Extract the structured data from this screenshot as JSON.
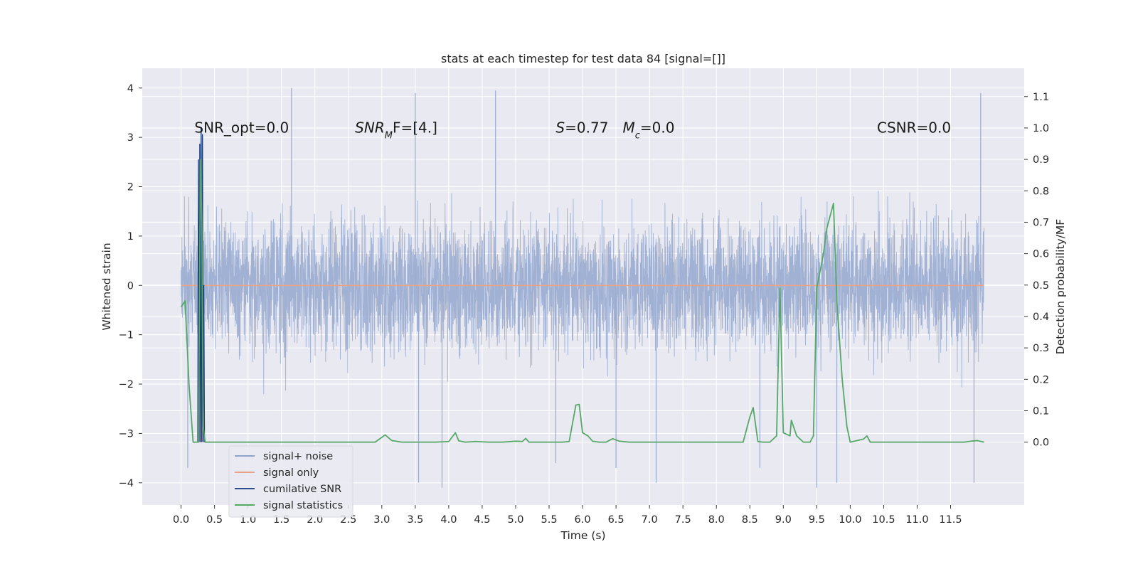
{
  "chart_data": {
    "type": "line",
    "title": "stats at each timestep for test data 84 [signal=[]]",
    "xlabel": "Time (s)",
    "ylabel": "Whitened strain",
    "ylabel_right": "Detection probability/MF",
    "xlim": [
      -0.58,
      12.6
    ],
    "ylim": [
      -4.45,
      4.4
    ],
    "ylim_right": [
      -0.2,
      1.19
    ],
    "x_ticks": [
      "0.0",
      "0.5",
      "1.0",
      "1.5",
      "2.0",
      "2.5",
      "3.0",
      "3.5",
      "4.0",
      "4.5",
      "5.0",
      "5.5",
      "6.0",
      "6.5",
      "7.0",
      "7.5",
      "8.0",
      "8.5",
      "9.0",
      "9.5",
      "10.0",
      "10.5",
      "11.0",
      "11.5"
    ],
    "x_tick_values": [
      0,
      0.5,
      1,
      1.5,
      2,
      2.5,
      3,
      3.5,
      4,
      4.5,
      5,
      5.5,
      6,
      6.5,
      7,
      7.5,
      8,
      8.5,
      9,
      9.5,
      10,
      10.5,
      11,
      11.5
    ],
    "y_ticks": [
      "−4",
      "−3",
      "−2",
      "−1",
      "0",
      "1",
      "2",
      "3",
      "4"
    ],
    "y_tick_values": [
      -4,
      -3,
      -2,
      -1,
      0,
      1,
      2,
      3,
      4
    ],
    "y_right_ticks": [
      "0.0",
      "0.1",
      "0.2",
      "0.3",
      "0.4",
      "0.5",
      "0.6",
      "0.7",
      "0.8",
      "0.9",
      "1.0",
      "1.1"
    ],
    "y_right_tick_values": [
      0,
      0.1,
      0.2,
      0.3,
      0.4,
      0.5,
      0.6,
      0.7,
      0.8,
      0.9,
      1.0,
      1.1
    ],
    "annotations": [
      {
        "text": "SNR_opt=0.0",
        "x": 0.2,
        "y": 3.2
      },
      {
        "parts": [
          {
            "t": "SNR",
            "i": true
          },
          {
            "t": "M",
            "i": true,
            "sub": true
          },
          {
            "t": "F=[4.]",
            "i": false
          }
        ],
        "x": 2.6,
        "y": 3.2
      },
      {
        "parts": [
          {
            "t": "S",
            "i": true
          },
          {
            "t": "=0.77",
            "i": false
          }
        ],
        "x": 5.6,
        "y": 3.2
      },
      {
        "parts": [
          {
            "t": "M",
            "i": true
          },
          {
            "t": "c",
            "i": true,
            "sub": true
          },
          {
            "t": "=0.0",
            "i": false
          }
        ],
        "x": 6.6,
        "y": 3.2
      },
      {
        "text": "CSNR=0.0",
        "x": 10.4,
        "y": 3.2
      }
    ],
    "legend": {
      "placement": "lower-left",
      "entries": [
        {
          "label": "signal+ noise",
          "color": "#8ea3cc"
        },
        {
          "label": "signal only",
          "color": "#e8a48a"
        },
        {
          "label": "cumilative SNR",
          "color": "#2c4f8e"
        },
        {
          "label": "signal statistics",
          "color": "#55a868"
        }
      ]
    },
    "grid": true,
    "colors": {
      "plot_background": "#e9e9f1",
      "grid": "#ffffff",
      "noise": "#9aabd0",
      "signal_only": "#e8a48a",
      "cumulative_snr": "#1f3f7a",
      "statistics": "#55a868"
    },
    "series": [
      {
        "name": "signal+ noise",
        "axis": "left",
        "x_range": [
          0,
          12
        ],
        "envelope": "noisy, mostly within ±1.9, spikes to about ±4",
        "spikes": [
          [
            0.3,
            3.2
          ],
          [
            1.65,
            4.0
          ],
          [
            3.5,
            3.9
          ],
          [
            4.7,
            3.95
          ],
          [
            11.95,
            3.9
          ],
          [
            3.55,
            -4.0
          ],
          [
            3.9,
            -4.1
          ],
          [
            7.1,
            -4.0
          ],
          [
            9.5,
            -4.1
          ],
          [
            9.8,
            -4.0
          ],
          [
            11.85,
            -4.0
          ],
          [
            0.1,
            -3.7
          ],
          [
            6.5,
            -3.7
          ],
          [
            8.65,
            -3.7
          ],
          [
            5.6,
            -3.6
          ]
        ]
      },
      {
        "name": "signal only",
        "axis": "left",
        "x": [
          0,
          12
        ],
        "y": [
          0,
          0
        ]
      },
      {
        "name": "cumilative SNR",
        "axis": "right",
        "x": [
          0.25,
          0.26,
          0.27,
          0.28,
          0.29,
          0.3,
          0.31,
          0.32,
          0.33,
          0.34,
          0.35
        ],
        "y": [
          0.0,
          0.9,
          0.0,
          0.95,
          0.0,
          1.0,
          0.0,
          0.98,
          0.0,
          0.5,
          0.0
        ]
      },
      {
        "name": "signal statistics",
        "axis": "right",
        "x": [
          0,
          0.06,
          0.12,
          0.18,
          0.22,
          0.26,
          0.29,
          0.31,
          0.33,
          0.36,
          0.42,
          0.5,
          1.0,
          1.5,
          2.0,
          2.5,
          2.9,
          3.05,
          3.15,
          3.3,
          3.5,
          3.8,
          4.0,
          4.1,
          4.15,
          4.25,
          4.4,
          4.6,
          4.8,
          5.0,
          5.1,
          5.15,
          5.2,
          5.3,
          5.5,
          5.7,
          5.8,
          5.9,
          5.95,
          6.0,
          6.08,
          6.15,
          6.25,
          6.35,
          6.45,
          6.55,
          6.7,
          7.0,
          7.5,
          8.0,
          8.4,
          8.5,
          8.55,
          8.62,
          8.7,
          8.8,
          8.9,
          8.95,
          9.0,
          9.1,
          9.12,
          9.2,
          9.3,
          9.4,
          9.45,
          9.5,
          9.6,
          9.65,
          9.7,
          9.75,
          9.8,
          9.88,
          9.95,
          10.0,
          10.1,
          10.2,
          10.25,
          10.3,
          10.5,
          11.0,
          11.5,
          11.6,
          11.7,
          11.8,
          11.9,
          12.0
        ],
        "y": [
          0.43,
          0.45,
          0.18,
          0.0,
          0.0,
          0.0,
          0.9,
          0.7,
          0.05,
          0.0,
          0.0,
          0.0,
          0.0,
          0.0,
          0.0,
          0.0,
          0.0,
          0.023,
          0.005,
          0.0,
          0.0,
          0.0,
          0.002,
          0.03,
          0.004,
          0.0,
          0.002,
          0.0,
          0.0,
          0.003,
          0.002,
          0.012,
          0.0,
          0.0,
          0.0,
          0.0,
          0.002,
          0.118,
          0.12,
          0.03,
          0.02,
          0.003,
          0.0,
          0.0,
          0.011,
          0.003,
          0.0,
          0.0,
          0.0,
          0.0,
          0.0,
          0.08,
          0.11,
          0.002,
          0.0,
          0.0,
          0.02,
          0.49,
          0.03,
          0.02,
          0.07,
          0.02,
          0.0,
          0.0,
          0.02,
          0.49,
          0.6,
          0.68,
          0.72,
          0.76,
          0.45,
          0.2,
          0.05,
          0.0,
          0.005,
          0.01,
          0.02,
          0.0,
          0.0,
          0.0,
          0.0,
          0.0,
          0.0,
          0.003,
          0.005,
          0.0
        ]
      }
    ]
  }
}
